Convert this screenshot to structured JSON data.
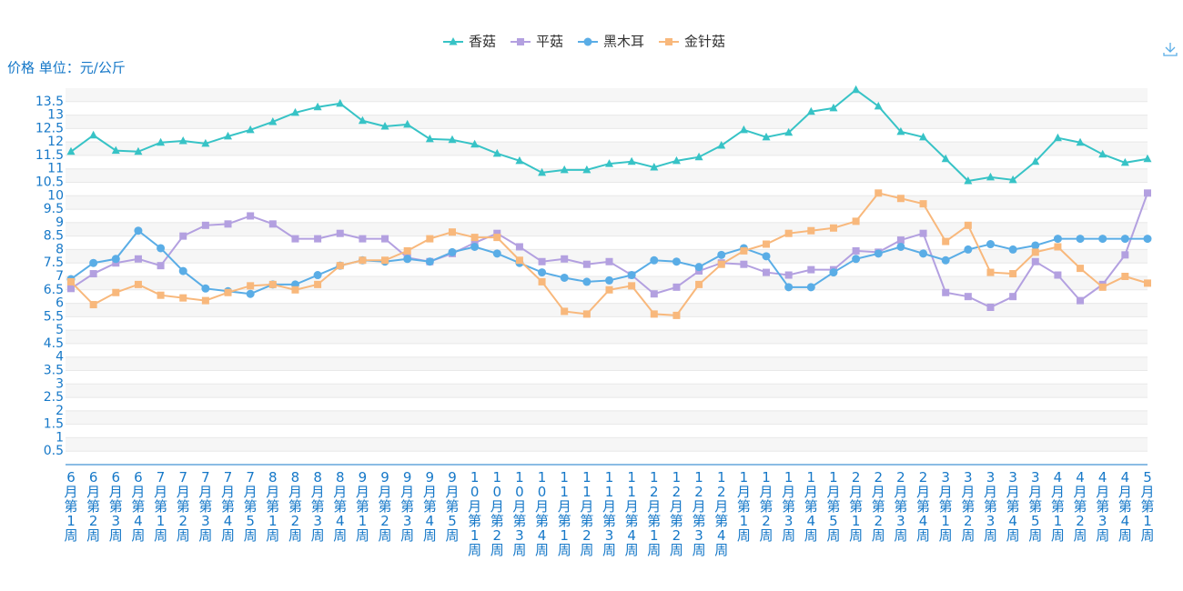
{
  "chart_data": {
    "type": "line",
    "y_axis_label": "价格 单位：元/公斤",
    "categories": [
      "6月第1周",
      "6月第2周",
      "6月第3周",
      "6月第4周",
      "7月第1周",
      "7月第2周",
      "7月第3周",
      "7月第4周",
      "7月第5周",
      "8月第1周",
      "8月第2周",
      "8月第3周",
      "8月第4周",
      "9月第1周",
      "9月第2周",
      "9月第3周",
      "9月第4周",
      "9月第5周",
      "10月第1周",
      "10月第2周",
      "10月第3周",
      "10月第4周",
      "11月第1周",
      "11月第2周",
      "11月第3周",
      "11月第4周",
      "12月第1周",
      "12月第2周",
      "12月第3周",
      "12月第4周",
      "1月第1周",
      "1月第2周",
      "1月第3周",
      "1月第4周",
      "1月第5周",
      "2月第1周",
      "2月第2周",
      "2月第3周",
      "2月第4周",
      "3月第1周",
      "3月第2周",
      "3月第3周",
      "3月第4周",
      "3月第5周",
      "4月第1周",
      "4月第2周",
      "4月第3周",
      "4月第4周",
      "5月第1周"
    ],
    "series": [
      {
        "name": "香菇",
        "color": "#37c3c6",
        "marker": "triangle",
        "values": [
          11.64,
          12.25,
          11.68,
          11.64,
          11.98,
          12.04,
          11.94,
          12.21,
          12.45,
          12.75,
          13.09,
          13.3,
          13.43,
          12.79,
          12.58,
          12.65,
          12.11,
          12.08,
          11.91,
          11.57,
          11.3,
          10.86,
          10.96,
          10.96,
          11.19,
          11.27,
          11.06,
          11.3,
          11.44,
          11.87,
          12.45,
          12.18,
          12.35,
          13.13,
          13.26,
          13.94,
          13.33,
          12.38,
          12.18,
          11.37,
          10.55,
          10.69,
          10.59,
          11.27,
          12.15,
          11.98,
          11.54,
          11.23,
          11.37
        ]
      },
      {
        "name": "平菇",
        "color": "#b3a0e0",
        "marker": "square",
        "values": [
          6.55,
          7.1,
          7.5,
          7.65,
          7.4,
          8.5,
          8.9,
          8.95,
          9.25,
          8.95,
          8.4,
          8.4,
          8.6,
          8.4,
          8.4,
          7.7,
          7.55,
          7.85,
          8.25,
          8.6,
          8.1,
          7.55,
          7.65,
          7.45,
          7.55,
          7.05,
          6.35,
          6.6,
          7.2,
          7.5,
          7.45,
          7.15,
          7.05,
          7.25,
          7.25,
          7.95,
          7.9,
          8.35,
          8.6,
          6.4,
          6.25,
          5.85,
          6.25,
          7.55,
          7.05,
          6.1,
          6.7,
          7.8,
          10.1
        ]
      },
      {
        "name": "黑木耳",
        "color": "#5aade6",
        "marker": "circle",
        "values": [
          6.9,
          7.5,
          7.65,
          8.7,
          8.05,
          7.2,
          6.55,
          6.45,
          6.35,
          6.7,
          6.7,
          7.05,
          7.4,
          7.6,
          7.55,
          7.65,
          7.55,
          7.9,
          8.1,
          7.85,
          7.5,
          7.15,
          6.95,
          6.8,
          6.85,
          7.05,
          7.6,
          7.55,
          7.35,
          7.8,
          8.05,
          7.75,
          6.6,
          6.6,
          7.15,
          7.65,
          7.85,
          8.1,
          7.85,
          7.6,
          8.0,
          8.2,
          8.0,
          8.15,
          8.4,
          8.4,
          8.4,
          8.4,
          8.4
        ]
      },
      {
        "name": "金针菇",
        "color": "#f8b87c",
        "marker": "square",
        "values": [
          6.8,
          5.95,
          6.4,
          6.7,
          6.3,
          6.2,
          6.1,
          6.4,
          6.65,
          6.7,
          6.5,
          6.7,
          7.4,
          7.6,
          7.6,
          7.95,
          8.4,
          8.65,
          8.45,
          8.45,
          7.6,
          6.8,
          5.7,
          5.6,
          6.5,
          6.65,
          5.6,
          5.55,
          6.7,
          7.45,
          7.95,
          8.2,
          8.6,
          8.7,
          8.8,
          9.05,
          10.1,
          9.9,
          9.7,
          8.3,
          8.9,
          7.15,
          7.1,
          7.9,
          8.1,
          7.3,
          6.6,
          7.0,
          6.75
        ]
      }
    ],
    "ylim": [
      0,
      14
    ],
    "yticks": [
      0.5,
      1,
      1.5,
      2,
      2.5,
      3,
      3.5,
      4,
      4.5,
      5,
      5.5,
      6,
      6.5,
      7,
      7.5,
      8,
      8.5,
      9,
      9.5,
      10,
      10.5,
      11,
      11.5,
      12,
      12.5,
      13,
      13.5
    ],
    "grid": true
  }
}
